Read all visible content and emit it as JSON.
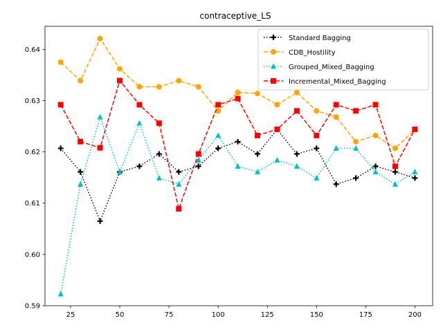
{
  "chart_data": {
    "type": "line",
    "title": "contraceptive_LS",
    "xlabel": "",
    "ylabel": "",
    "xlim": [
      12,
      209
    ],
    "ylim": [
      0.59,
      0.6445
    ],
    "x_ticks": [
      25,
      50,
      75,
      100,
      125,
      150,
      175,
      200
    ],
    "y_ticks": [
      0.59,
      0.6,
      0.61,
      0.62,
      0.63,
      0.64
    ],
    "y_tick_labels": [
      "0.59",
      "0.60",
      "0.61",
      "0.62",
      "0.63",
      "0.64"
    ],
    "grid": false,
    "legend_position": "upper right",
    "x": [
      20,
      30,
      40,
      50,
      60,
      70,
      80,
      90,
      100,
      110,
      120,
      130,
      140,
      150,
      160,
      170,
      180,
      190,
      200
    ],
    "series": [
      {
        "name": "Standard Bagging",
        "color": "#000000",
        "linestyle": "dotted",
        "marker": "plus",
        "values": [
          0.6207,
          0.6161,
          0.6065,
          0.6161,
          0.6172,
          0.6196,
          0.6161,
          0.6172,
          0.6207,
          0.622,
          0.6196,
          0.6244,
          0.6196,
          0.6207,
          0.6137,
          0.6149,
          0.6172,
          0.6161,
          0.6149
        ]
      },
      {
        "name": "CDB_Hostility",
        "color": "#ffa500",
        "linestyle": "dashed",
        "marker": "circle",
        "values": [
          0.6375,
          0.6339,
          0.6421,
          0.6362,
          0.6327,
          0.6327,
          0.6339,
          0.6327,
          0.628,
          0.6316,
          0.6314,
          0.6292,
          0.6316,
          0.628,
          0.6268,
          0.622,
          0.6232,
          0.6207,
          0.6244
        ]
      },
      {
        "name": "Grouped_Mixed_Bagging",
        "color": "#00bfbf",
        "linestyle": "dotted",
        "marker": "triangle",
        "values": [
          0.5923,
          0.6137,
          0.6268,
          0.6161,
          0.6256,
          0.6149,
          0.6137,
          0.6184,
          0.6232,
          0.6172,
          0.6161,
          0.6184,
          0.6172,
          0.6149,
          0.6207,
          0.6207,
          0.6161,
          0.6137,
          0.6161
        ]
      },
      {
        "name": "Incremental_Mixed_Bagging",
        "color": "#ff0000",
        "linestyle": "dashed",
        "marker": "square",
        "values": [
          0.6292,
          0.622,
          0.6208,
          0.6339,
          0.6292,
          0.6256,
          0.6089,
          0.6196,
          0.6292,
          0.6304,
          0.6232,
          0.6244,
          0.628,
          0.6232,
          0.6292,
          0.628,
          0.6292,
          0.6172,
          0.6244
        ]
      }
    ]
  }
}
